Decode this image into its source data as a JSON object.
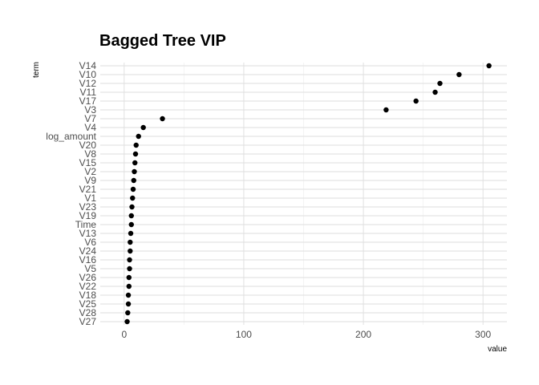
{
  "chart_data": {
    "type": "scatter",
    "title": "Bagged Tree VIP",
    "xlabel": "value",
    "ylabel": "term",
    "xlim": [
      -20,
      320
    ],
    "x_ticks": [
      0,
      100,
      200,
      300
    ],
    "grid": true,
    "legend": "none",
    "point_color": "#000000",
    "series": [
      {
        "points": [
          {
            "term": "V14",
            "value": 305
          },
          {
            "term": "V10",
            "value": 280
          },
          {
            "term": "V12",
            "value": 264
          },
          {
            "term": "V11",
            "value": 260
          },
          {
            "term": "V17",
            "value": 244
          },
          {
            "term": "V3",
            "value": 219
          },
          {
            "term": "V7",
            "value": 32
          },
          {
            "term": "V4",
            "value": 16
          },
          {
            "term": "log_amount",
            "value": 12
          },
          {
            "term": "V20",
            "value": 10
          },
          {
            "term": "V8",
            "value": 9.5
          },
          {
            "term": "V15",
            "value": 9
          },
          {
            "term": "V2",
            "value": 8.5
          },
          {
            "term": "V9",
            "value": 8
          },
          {
            "term": "V21",
            "value": 7.5
          },
          {
            "term": "V1",
            "value": 7
          },
          {
            "term": "V23",
            "value": 6.5
          },
          {
            "term": "V19",
            "value": 6
          },
          {
            "term": "Time",
            "value": 6
          },
          {
            "term": "V13",
            "value": 5.5
          },
          {
            "term": "V6",
            "value": 5
          },
          {
            "term": "V24",
            "value": 5
          },
          {
            "term": "V16",
            "value": 4.5
          },
          {
            "term": "V5",
            "value": 4.5
          },
          {
            "term": "V26",
            "value": 4
          },
          {
            "term": "V22",
            "value": 4
          },
          {
            "term": "V18",
            "value": 3.5
          },
          {
            "term": "V25",
            "value": 3.5
          },
          {
            "term": "V28",
            "value": 3
          },
          {
            "term": "V27",
            "value": 2.5
          }
        ]
      }
    ]
  }
}
